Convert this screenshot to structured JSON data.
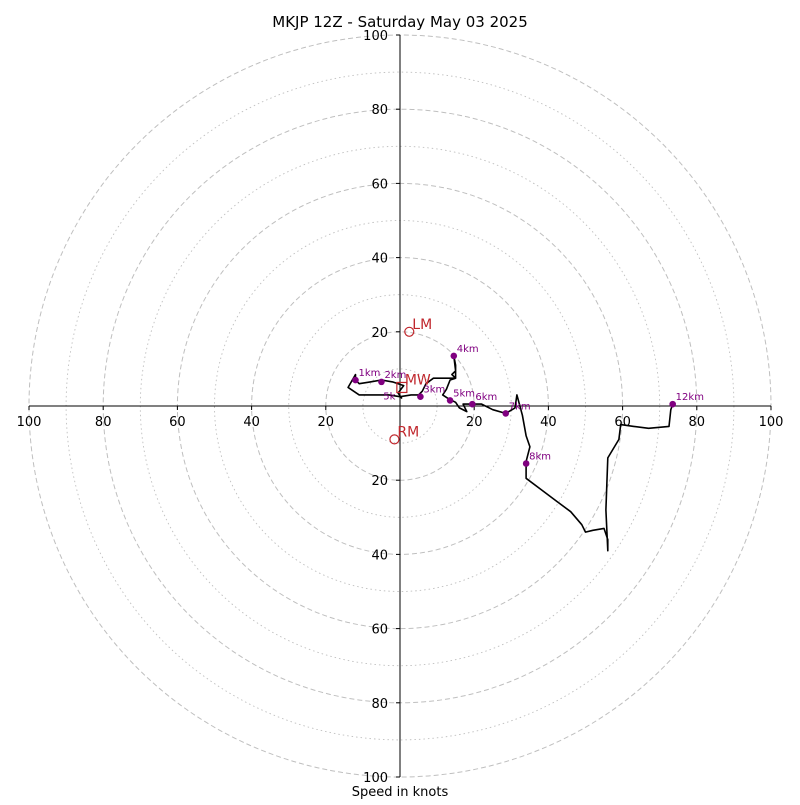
{
  "chart_data": {
    "type": "hodograph",
    "title": "MKJP 12Z - Saturday May 03 2025",
    "xlabel": "Speed in knots",
    "range": [
      -100,
      100
    ],
    "ring_major_step": 20,
    "ring_minor_step": 10,
    "x_ticks": [
      {
        "value": -100,
        "label": "100"
      },
      {
        "value": -80,
        "label": "80"
      },
      {
        "value": -60,
        "label": "60"
      },
      {
        "value": -40,
        "label": "40"
      },
      {
        "value": -20,
        "label": "20"
      },
      {
        "value": 20,
        "label": "20"
      },
      {
        "value": 40,
        "label": "40"
      },
      {
        "value": 60,
        "label": "60"
      },
      {
        "value": 80,
        "label": "80"
      },
      {
        "value": 100,
        "label": "100"
      }
    ],
    "y_ticks": [
      {
        "value": 100,
        "label": "100"
      },
      {
        "value": 80,
        "label": "80"
      },
      {
        "value": 60,
        "label": "60"
      },
      {
        "value": 40,
        "label": "40"
      },
      {
        "value": 20,
        "label": "20"
      },
      {
        "value": -20,
        "label": "20"
      },
      {
        "value": -40,
        "label": "40"
      },
      {
        "value": -60,
        "label": "60"
      },
      {
        "value": -80,
        "label": "80"
      },
      {
        "value": -100,
        "label": "100"
      }
    ],
    "trace": [
      [
        0.5,
        2.0
      ],
      [
        -0.5,
        3.5
      ],
      [
        1,
        5.5
      ],
      [
        -2,
        6.5
      ],
      [
        -5,
        7.0
      ],
      [
        -8,
        6.5
      ],
      [
        -11,
        6.0
      ],
      [
        -12,
        7.0
      ],
      [
        -12,
        8.5
      ],
      [
        -14,
        5.0
      ],
      [
        -11,
        3.0
      ],
      [
        -8,
        3.0
      ],
      [
        -5,
        3.0
      ],
      [
        -3,
        3.0
      ],
      [
        0,
        2.5
      ],
      [
        3,
        3.0
      ],
      [
        5,
        3.0
      ],
      [
        6,
        4.0
      ],
      [
        7,
        6.0
      ],
      [
        9,
        7.5
      ],
      [
        12,
        7.5
      ],
      [
        15,
        7.5
      ],
      [
        14,
        8.5
      ],
      [
        15,
        9.5
      ],
      [
        14.5,
        13.5
      ],
      [
        15,
        11.0
      ],
      [
        15,
        7.5
      ],
      [
        13.5,
        7.0
      ],
      [
        12.5,
        4.5
      ],
      [
        11.5,
        3.0
      ],
      [
        13,
        2.0
      ],
      [
        15,
        1.0
      ],
      [
        16,
        -0.5
      ],
      [
        18,
        -1.5
      ],
      [
        17,
        0.5
      ],
      [
        19.5,
        0.5
      ],
      [
        22,
        0.5
      ],
      [
        25,
        -1.0
      ],
      [
        28.5,
        -2.0
      ],
      [
        31,
        -0.5
      ],
      [
        31.5,
        3.0
      ],
      [
        33,
        -2.5
      ],
      [
        34,
        -8.0
      ],
      [
        35,
        -11.0
      ],
      [
        34,
        -15.0
      ],
      [
        34,
        -17.0
      ],
      [
        34,
        -19.5
      ],
      [
        38,
        -22.5
      ],
      [
        42,
        -25.5
      ],
      [
        46,
        -28.5
      ],
      [
        49,
        -32.0
      ],
      [
        50,
        -34.0
      ],
      [
        52,
        -33.5
      ],
      [
        55,
        -33.0
      ],
      [
        56,
        -36.0
      ],
      [
        56,
        -39.0
      ],
      [
        55.5,
        -28.0
      ],
      [
        56,
        -14.0
      ],
      [
        59,
        -9.0
      ],
      [
        59.5,
        -5.0
      ],
      [
        63,
        -5.5
      ],
      [
        67,
        -6.0
      ],
      [
        72.5,
        -5.5
      ],
      [
        73,
        -1.0
      ],
      [
        73.5,
        0.5
      ],
      [
        74,
        0.0
      ]
    ],
    "height_labels": [
      {
        "label": "1km",
        "u": -12,
        "v": 7.0
      },
      {
        "label": "2km",
        "u": -5,
        "v": 6.5
      },
      {
        "label": "3km",
        "u": 5.5,
        "v": 2.5
      },
      {
        "label": "4km",
        "u": 14.5,
        "v": 13.5
      },
      {
        "label": "5km",
        "u": 13.5,
        "v": 1.5
      },
      {
        "label": "6km",
        "u": 19.5,
        "v": 0.5
      },
      {
        "label": "7km",
        "u": 28.5,
        "v": -2.0
      },
      {
        "label": "8km",
        "u": 34,
        "v": -15.5
      },
      {
        "label": "12km",
        "u": 73.5,
        "v": 0.5
      }
    ],
    "low_label": {
      "label": "5k",
      "u": -4.5,
      "v": 2.5
    },
    "motion_markers": [
      {
        "label": "LM",
        "u": 2.5,
        "v": 20.0
      },
      {
        "label": "MW",
        "u": 0.5,
        "v": 5.0
      },
      {
        "label": "RM",
        "u": -1.5,
        "v": -9.0
      }
    ],
    "colors": {
      "trace": "#000000",
      "height_points": "#800080",
      "motion": "#c0272d",
      "rings": "#bfbfbf"
    }
  }
}
